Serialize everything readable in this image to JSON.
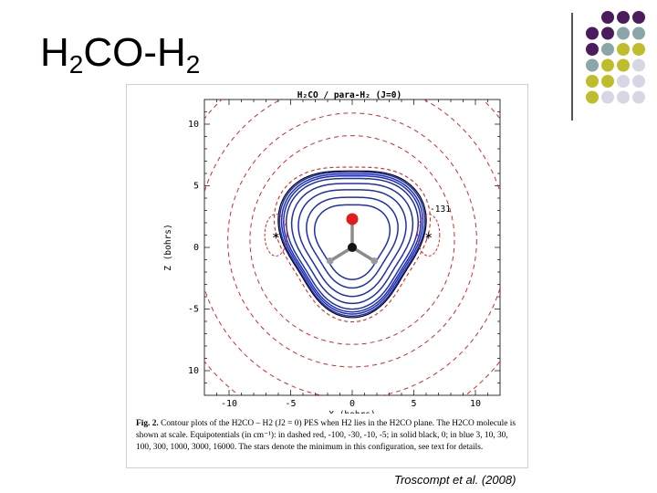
{
  "slide": {
    "title_main": "H",
    "title_sub1": "2",
    "title_mid": "CO-H",
    "title_sub2": "2",
    "citation": "Troscompt et al. (2008)"
  },
  "decor": {
    "dot_colors": [
      "#4a1c5e",
      "#8aa6a9",
      "#bfbd2c",
      "#d7d6e5"
    ],
    "dot_rows": [
      [
        null,
        0,
        0,
        0
      ],
      [
        0,
        0,
        1,
        1
      ],
      [
        0,
        1,
        2,
        2
      ],
      [
        1,
        2,
        2,
        3
      ],
      [
        2,
        2,
        3,
        3
      ],
      [
        2,
        3,
        3,
        3
      ]
    ]
  },
  "chart_data": {
    "type": "contour",
    "title": "H₂CO / para-H₂ (J=0)",
    "xlabel": "X (bohrs)",
    "ylabel": "Z (bohrs)",
    "xlim": [
      -12,
      12
    ],
    "ylim": [
      -12,
      12
    ],
    "x_ticks": [
      "-10",
      "-5",
      "0",
      "5",
      "10"
    ],
    "y_ticks": [
      "10",
      "5",
      "0",
      "-5",
      "10"
    ],
    "annotation": "-131",
    "minima_markers": [
      [
        -6.2,
        1.0
      ],
      [
        6.2,
        1.0
      ]
    ],
    "contour_levels_cm1": [
      -100,
      -30,
      -10,
      -5,
      0,
      3,
      10,
      30,
      100,
      300,
      1000,
      3000,
      16000
    ],
    "colors": {
      "dashed": "#d42b2b",
      "blue": "#1e2fb0",
      "black": "#000000"
    },
    "molecule": {
      "atoms": [
        {
          "label": "O",
          "x": 0,
          "z": 2.3,
          "color": "#e01c1c"
        },
        {
          "label": "C",
          "x": 0,
          "z": 0.0,
          "color": "#111111"
        },
        {
          "label": "H",
          "x": -1.8,
          "z": -1.1,
          "color": "#9a9a9a"
        },
        {
          "label": "H",
          "x": 1.8,
          "z": -1.1,
          "color": "#9a9a9a"
        }
      ]
    }
  },
  "caption": {
    "label": "Fig. 2.",
    "text": "Contour plots of the H2CO – H2 (J2 = 0) PES when H2 lies in the H2CO plane. The H2CO molecule is shown at scale. Equipotentials (in cm⁻¹): in dashed red, -100, -30, -10, -5; in solid black, 0; in blue 3, 10, 30, 100, 300, 1000, 3000, 16000. The stars denote the minimum in this configuration, see text for details."
  }
}
